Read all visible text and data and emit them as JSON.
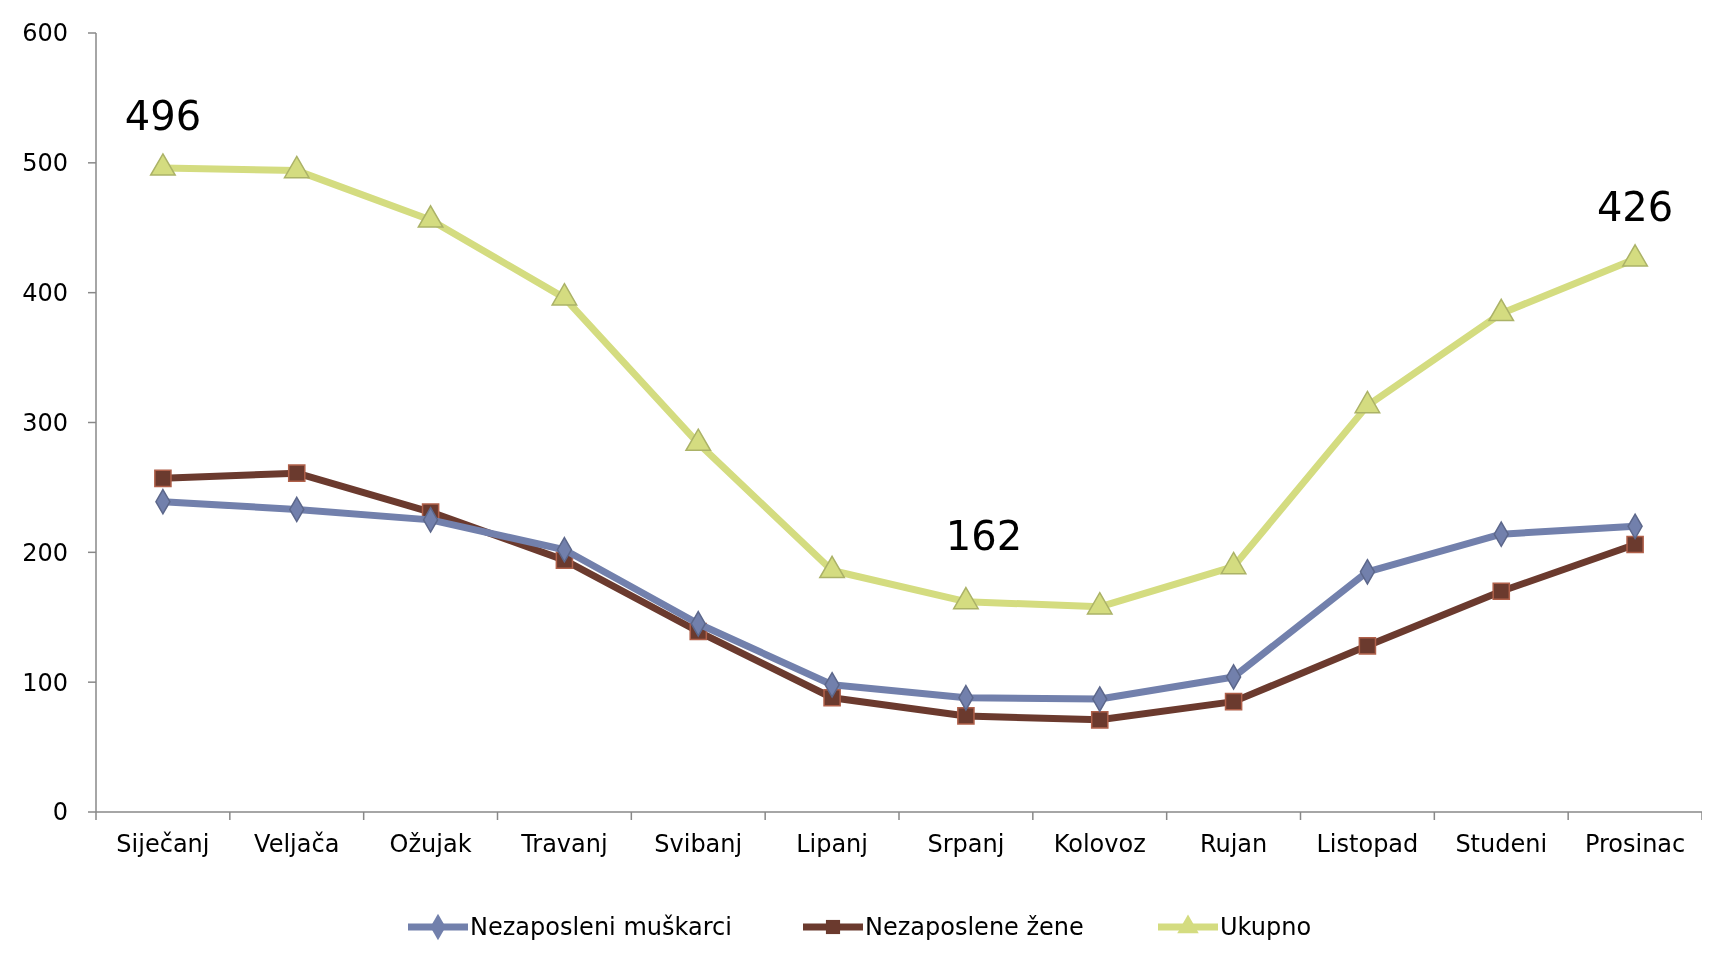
{
  "chart_data": {
    "type": "line",
    "categories": [
      "Siječanj",
      "Veljača",
      "Ožujak",
      "Travanj",
      "Svibanj",
      "Lipanj",
      "Srpanj",
      "Kolovoz",
      "Rujan",
      "Listopad",
      "Studeni",
      "Prosinac"
    ],
    "series": [
      {
        "name": "Nezaposleni muškarci",
        "color": "#7280ac",
        "marker": "diamond",
        "values": [
          239,
          233,
          225,
          202,
          145,
          98,
          88,
          87,
          104,
          185,
          214,
          220
        ]
      },
      {
        "name": "Nezaposlene žene",
        "color": "#6b3a2e",
        "marker": "square",
        "values": [
          257,
          261,
          231,
          194,
          139,
          88,
          74,
          71,
          85,
          128,
          170,
          206
        ]
      },
      {
        "name": "Ukupno",
        "color": "#d4dc80",
        "marker": "triangle",
        "values": [
          496,
          494,
          456,
          396,
          284,
          186,
          162,
          158,
          189,
          313,
          384,
          426
        ]
      }
    ],
    "ylim": [
      0,
      600
    ],
    "yticks": [
      0,
      100,
      200,
      300,
      400,
      500,
      600
    ],
    "grid": false,
    "legend": "bottom",
    "line_style": "solid",
    "annotations": [
      {
        "text": "496",
        "x": "Siječanj",
        "y": 496
      },
      {
        "text": "162",
        "x": "Srpanj",
        "y": 162
      },
      {
        "text": "426",
        "x": "Prosinac",
        "y": 426
      }
    ]
  }
}
